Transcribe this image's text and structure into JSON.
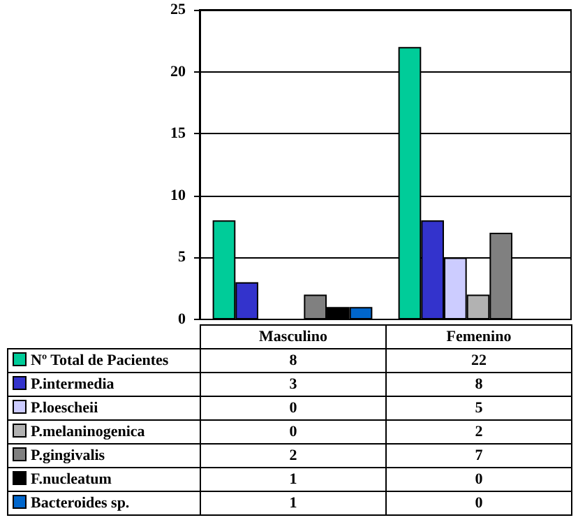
{
  "chart_data": {
    "type": "bar",
    "categories": [
      "Masculino",
      "Femenino"
    ],
    "series": [
      {
        "name": "Nº Total de Pacientes",
        "color": "#00cc99",
        "values": [
          8,
          22
        ]
      },
      {
        "name": "P.intermedia",
        "color": "#3333cc",
        "values": [
          3,
          8
        ]
      },
      {
        "name": "P.loescheii",
        "color": "#ccccff",
        "values": [
          0,
          5
        ]
      },
      {
        "name": "P.melaninogenica",
        "color": "#b2b2b2",
        "values": [
          0,
          2
        ]
      },
      {
        "name": "P.gingivalis",
        "color": "#808080",
        "values": [
          2,
          7
        ]
      },
      {
        "name": "F.nucleatum",
        "color": "#000000",
        "values": [
          1,
          0
        ]
      },
      {
        "name": "Bacteroides sp.",
        "color": "#0066cc",
        "values": [
          1,
          0
        ]
      }
    ],
    "ylim": [
      0,
      25
    ],
    "yticks": [
      0,
      5,
      10,
      15,
      20,
      25
    ],
    "grid": "y",
    "legend": "bottom",
    "data_labels": true
  }
}
